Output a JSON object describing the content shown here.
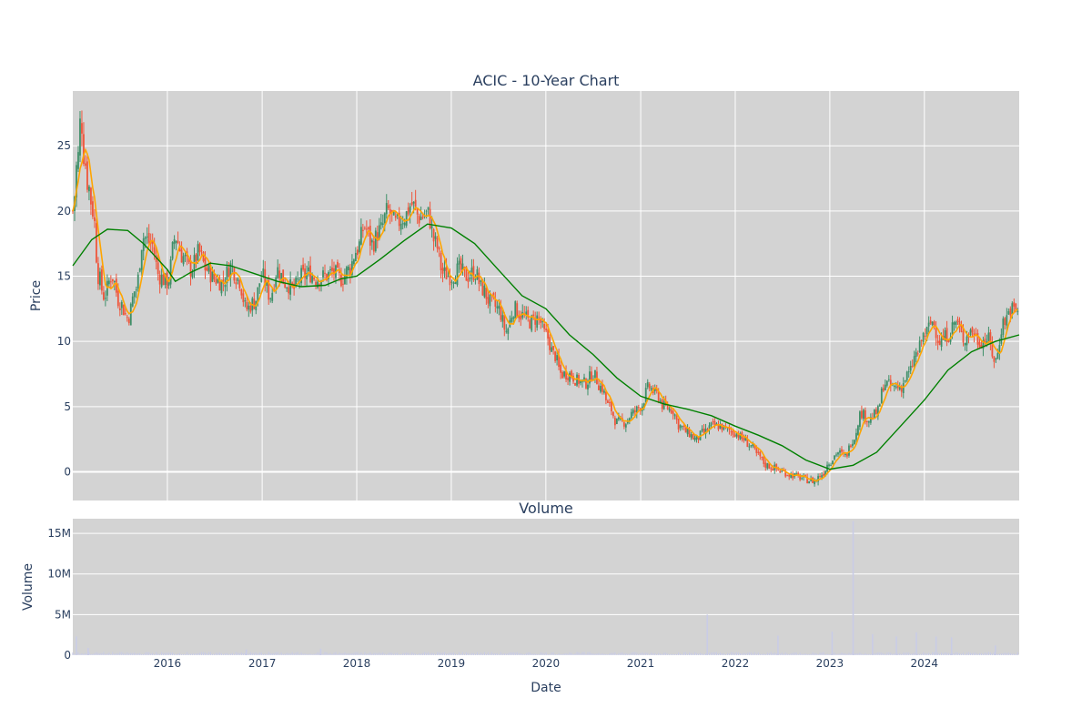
{
  "chart_data": {
    "type": "candlestick",
    "title": "ACIC - 10-Year Chart",
    "price_panel": {
      "ylabel": "Price",
      "ylim": [
        -2.2,
        29.2
      ],
      "yticks": [
        0,
        5,
        10,
        15,
        20,
        25
      ],
      "xlim": [
        "2015-01-01",
        "2025-01-01"
      ],
      "grid": true,
      "background": "#d3d3d3"
    },
    "volume_panel": {
      "subtitle": "Volume",
      "ylabel": "Volume",
      "ylim": [
        0,
        16800000
      ],
      "yticks": [
        0,
        5000000,
        10000000,
        15000000
      ],
      "ytick_labels": [
        "0",
        "5M",
        "10M",
        "15M"
      ],
      "grid": true,
      "bar_color": "#c9cce6"
    },
    "xlabel": "Date",
    "xticks": [
      "2016",
      "2017",
      "2018",
      "2019",
      "2020",
      "2021",
      "2022",
      "2023",
      "2024"
    ],
    "colors": {
      "up": "#3d8f68",
      "down": "#ef553b",
      "ma_short": "#ffa500",
      "ma_long": "#008000",
      "panel_bg": "#d3d3d3",
      "grid": "#ffffff"
    },
    "price_path": [
      {
        "x": "2015-01-01",
        "y": 20.0
      },
      {
        "x": "2015-01-20",
        "y": 24.0
      },
      {
        "x": "2015-02-01",
        "y": 27.2
      },
      {
        "x": "2015-02-15",
        "y": 24.0
      },
      {
        "x": "2015-03-01",
        "y": 22.0
      },
      {
        "x": "2015-03-20",
        "y": 20.0
      },
      {
        "x": "2015-04-10",
        "y": 15.0
      },
      {
        "x": "2015-05-01",
        "y": 13.5
      },
      {
        "x": "2015-06-01",
        "y": 15.0
      },
      {
        "x": "2015-07-01",
        "y": 13.0
      },
      {
        "x": "2015-08-01",
        "y": 11.8
      },
      {
        "x": "2015-09-01",
        "y": 14.0
      },
      {
        "x": "2015-10-01",
        "y": 18.0
      },
      {
        "x": "2015-11-01",
        "y": 17.5
      },
      {
        "x": "2015-12-01",
        "y": 15.0
      },
      {
        "x": "2016-01-01",
        "y": 14.5
      },
      {
        "x": "2016-02-01",
        "y": 18.0
      },
      {
        "x": "2016-03-01",
        "y": 16.5
      },
      {
        "x": "2016-04-01",
        "y": 15.5
      },
      {
        "x": "2016-05-01",
        "y": 16.8
      },
      {
        "x": "2016-06-01",
        "y": 15.5
      },
      {
        "x": "2016-07-01",
        "y": 14.8
      },
      {
        "x": "2016-08-01",
        "y": 14.5
      },
      {
        "x": "2016-09-01",
        "y": 15.8
      },
      {
        "x": "2016-10-01",
        "y": 14.8
      },
      {
        "x": "2016-11-01",
        "y": 12.5
      },
      {
        "x": "2016-12-01",
        "y": 13.0
      },
      {
        "x": "2017-01-01",
        "y": 15.0
      },
      {
        "x": "2017-02-01",
        "y": 13.5
      },
      {
        "x": "2017-03-01",
        "y": 15.5
      },
      {
        "x": "2017-04-01",
        "y": 14.5
      },
      {
        "x": "2017-05-01",
        "y": 14.0
      },
      {
        "x": "2017-06-01",
        "y": 15.0
      },
      {
        "x": "2017-07-01",
        "y": 15.2
      },
      {
        "x": "2017-08-01",
        "y": 14.8
      },
      {
        "x": "2017-09-01",
        "y": 15.0
      },
      {
        "x": "2017-10-01",
        "y": 15.3
      },
      {
        "x": "2017-11-01",
        "y": 14.8
      },
      {
        "x": "2017-12-01",
        "y": 15.5
      },
      {
        "x": "2018-01-01",
        "y": 17.0
      },
      {
        "x": "2018-02-01",
        "y": 18.8
      },
      {
        "x": "2018-03-01",
        "y": 17.5
      },
      {
        "x": "2018-04-01",
        "y": 18.5
      },
      {
        "x": "2018-05-01",
        "y": 20.0
      },
      {
        "x": "2018-06-01",
        "y": 19.0
      },
      {
        "x": "2018-07-01",
        "y": 19.5
      },
      {
        "x": "2018-08-01",
        "y": 20.5
      },
      {
        "x": "2018-09-01",
        "y": 19.5
      },
      {
        "x": "2018-10-01",
        "y": 19.8
      },
      {
        "x": "2018-11-01",
        "y": 17.5
      },
      {
        "x": "2018-12-01",
        "y": 15.2
      },
      {
        "x": "2019-01-01",
        "y": 15.0
      },
      {
        "x": "2019-02-01",
        "y": 15.5
      },
      {
        "x": "2019-03-01",
        "y": 15.0
      },
      {
        "x": "2019-04-01",
        "y": 15.3
      },
      {
        "x": "2019-05-01",
        "y": 14.0
      },
      {
        "x": "2019-06-01",
        "y": 13.0
      },
      {
        "x": "2019-07-01",
        "y": 12.5
      },
      {
        "x": "2019-08-01",
        "y": 10.8
      },
      {
        "x": "2019-09-01",
        "y": 12.5
      },
      {
        "x": "2019-10-01",
        "y": 12.0
      },
      {
        "x": "2019-11-01",
        "y": 11.5
      },
      {
        "x": "2019-12-01",
        "y": 11.8
      },
      {
        "x": "2020-01-01",
        "y": 10.5
      },
      {
        "x": "2020-02-01",
        "y": 9.0
      },
      {
        "x": "2020-03-01",
        "y": 7.5
      },
      {
        "x": "2020-04-01",
        "y": 7.5
      },
      {
        "x": "2020-05-01",
        "y": 7.0
      },
      {
        "x": "2020-06-01",
        "y": 6.8
      },
      {
        "x": "2020-07-01",
        "y": 7.5
      },
      {
        "x": "2020-08-01",
        "y": 6.5
      },
      {
        "x": "2020-09-01",
        "y": 5.0
      },
      {
        "x": "2020-10-01",
        "y": 3.8
      },
      {
        "x": "2020-11-01",
        "y": 3.8
      },
      {
        "x": "2020-12-01",
        "y": 4.5
      },
      {
        "x": "2021-01-01",
        "y": 5.0
      },
      {
        "x": "2021-02-01",
        "y": 6.5
      },
      {
        "x": "2021-03-01",
        "y": 6.0
      },
      {
        "x": "2021-04-01",
        "y": 5.0
      },
      {
        "x": "2021-05-01",
        "y": 4.8
      },
      {
        "x": "2021-06-01",
        "y": 3.5
      },
      {
        "x": "2021-07-01",
        "y": 3.0
      },
      {
        "x": "2021-08-01",
        "y": 2.5
      },
      {
        "x": "2021-09-01",
        "y": 3.0
      },
      {
        "x": "2021-10-01",
        "y": 3.5
      },
      {
        "x": "2021-11-01",
        "y": 3.5
      },
      {
        "x": "2021-12-01",
        "y": 3.2
      },
      {
        "x": "2022-01-01",
        "y": 3.0
      },
      {
        "x": "2022-02-01",
        "y": 2.5
      },
      {
        "x": "2022-03-01",
        "y": 2.0
      },
      {
        "x": "2022-04-01",
        "y": 1.2
      },
      {
        "x": "2022-05-01",
        "y": 0.5
      },
      {
        "x": "2022-06-01",
        "y": 0.3
      },
      {
        "x": "2022-07-01",
        "y": 0.0
      },
      {
        "x": "2022-08-01",
        "y": -0.2
      },
      {
        "x": "2022-09-01",
        "y": -0.4
      },
      {
        "x": "2022-10-01",
        "y": -0.6
      },
      {
        "x": "2022-11-01",
        "y": -0.7
      },
      {
        "x": "2022-12-01",
        "y": -0.2
      },
      {
        "x": "2023-01-01",
        "y": 0.8
      },
      {
        "x": "2023-02-01",
        "y": 1.5
      },
      {
        "x": "2023-03-01",
        "y": 1.2
      },
      {
        "x": "2023-04-01",
        "y": 2.5
      },
      {
        "x": "2023-05-01",
        "y": 4.5
      },
      {
        "x": "2023-06-01",
        "y": 4.0
      },
      {
        "x": "2023-07-01",
        "y": 4.5
      },
      {
        "x": "2023-08-01",
        "y": 6.8
      },
      {
        "x": "2023-09-01",
        "y": 6.5
      },
      {
        "x": "2023-10-01",
        "y": 6.5
      },
      {
        "x": "2023-11-01",
        "y": 7.5
      },
      {
        "x": "2023-12-01",
        "y": 9.0
      },
      {
        "x": "2024-01-01",
        "y": 10.5
      },
      {
        "x": "2024-02-01",
        "y": 11.5
      },
      {
        "x": "2024-03-01",
        "y": 10.0
      },
      {
        "x": "2024-04-01",
        "y": 10.5
      },
      {
        "x": "2024-05-01",
        "y": 11.5
      },
      {
        "x": "2024-06-01",
        "y": 10.2
      },
      {
        "x": "2024-07-01",
        "y": 10.8
      },
      {
        "x": "2024-08-01",
        "y": 10.0
      },
      {
        "x": "2024-09-01",
        "y": 10.2
      },
      {
        "x": "2024-10-01",
        "y": 8.5
      },
      {
        "x": "2024-11-01",
        "y": 11.5
      },
      {
        "x": "2024-12-01",
        "y": 12.5
      },
      {
        "x": "2025-01-01",
        "y": 12.3
      }
    ],
    "ma_long_path": [
      {
        "x": "2015-01-01",
        "y": 15.8
      },
      {
        "x": "2015-03-15",
        "y": 17.8
      },
      {
        "x": "2015-05-15",
        "y": 18.6
      },
      {
        "x": "2015-08-01",
        "y": 18.5
      },
      {
        "x": "2015-10-01",
        "y": 17.5
      },
      {
        "x": "2016-01-01",
        "y": 15.5
      },
      {
        "x": "2016-02-01",
        "y": 14.6
      },
      {
        "x": "2016-04-01",
        "y": 15.3
      },
      {
        "x": "2016-06-15",
        "y": 16.0
      },
      {
        "x": "2016-09-01",
        "y": 15.8
      },
      {
        "x": "2016-12-01",
        "y": 15.2
      },
      {
        "x": "2017-03-01",
        "y": 14.6
      },
      {
        "x": "2017-06-01",
        "y": 14.2
      },
      {
        "x": "2017-09-01",
        "y": 14.3
      },
      {
        "x": "2017-11-01",
        "y": 14.8
      },
      {
        "x": "2018-01-01",
        "y": 15.0
      },
      {
        "x": "2018-04-01",
        "y": 16.3
      },
      {
        "x": "2018-07-01",
        "y": 17.7
      },
      {
        "x": "2018-10-01",
        "y": 19.0
      },
      {
        "x": "2019-01-01",
        "y": 18.7
      },
      {
        "x": "2019-04-01",
        "y": 17.5
      },
      {
        "x": "2019-07-01",
        "y": 15.5
      },
      {
        "x": "2019-10-01",
        "y": 13.5
      },
      {
        "x": "2020-01-01",
        "y": 12.5
      },
      {
        "x": "2020-04-01",
        "y": 10.5
      },
      {
        "x": "2020-07-01",
        "y": 9.0
      },
      {
        "x": "2020-10-01",
        "y": 7.2
      },
      {
        "x": "2021-01-01",
        "y": 5.8
      },
      {
        "x": "2021-04-01",
        "y": 5.2
      },
      {
        "x": "2021-07-01",
        "y": 4.8
      },
      {
        "x": "2021-10-01",
        "y": 4.3
      },
      {
        "x": "2022-01-01",
        "y": 3.5
      },
      {
        "x": "2022-04-01",
        "y": 2.8
      },
      {
        "x": "2022-07-01",
        "y": 2.0
      },
      {
        "x": "2022-10-01",
        "y": 0.9
      },
      {
        "x": "2023-01-01",
        "y": 0.2
      },
      {
        "x": "2023-04-01",
        "y": 0.5
      },
      {
        "x": "2023-07-01",
        "y": 1.5
      },
      {
        "x": "2023-10-01",
        "y": 3.5
      },
      {
        "x": "2024-01-01",
        "y": 5.5
      },
      {
        "x": "2024-04-01",
        "y": 7.8
      },
      {
        "x": "2024-07-01",
        "y": 9.2
      },
      {
        "x": "2024-10-01",
        "y": 10.0
      },
      {
        "x": "2025-01-01",
        "y": 10.5
      }
    ],
    "volume_baseline_millions": 0.25,
    "volume_spikes": [
      {
        "x": "2015-01-15",
        "y": 2300000
      },
      {
        "x": "2015-03-01",
        "y": 900000
      },
      {
        "x": "2016-11-01",
        "y": 700000
      },
      {
        "x": "2017-08-15",
        "y": 800000
      },
      {
        "x": "2021-09-15",
        "y": 5000000
      },
      {
        "x": "2022-06-15",
        "y": 2400000
      },
      {
        "x": "2023-01-10",
        "y": 2900000
      },
      {
        "x": "2023-04-01",
        "y": 16500000
      },
      {
        "x": "2023-06-15",
        "y": 2600000
      },
      {
        "x": "2023-09-15",
        "y": 2300000
      },
      {
        "x": "2023-12-01",
        "y": 2800000
      },
      {
        "x": "2024-02-15",
        "y": 2300000
      },
      {
        "x": "2024-04-15",
        "y": 2200000
      },
      {
        "x": "2024-10-01",
        "y": 1200000
      }
    ]
  }
}
